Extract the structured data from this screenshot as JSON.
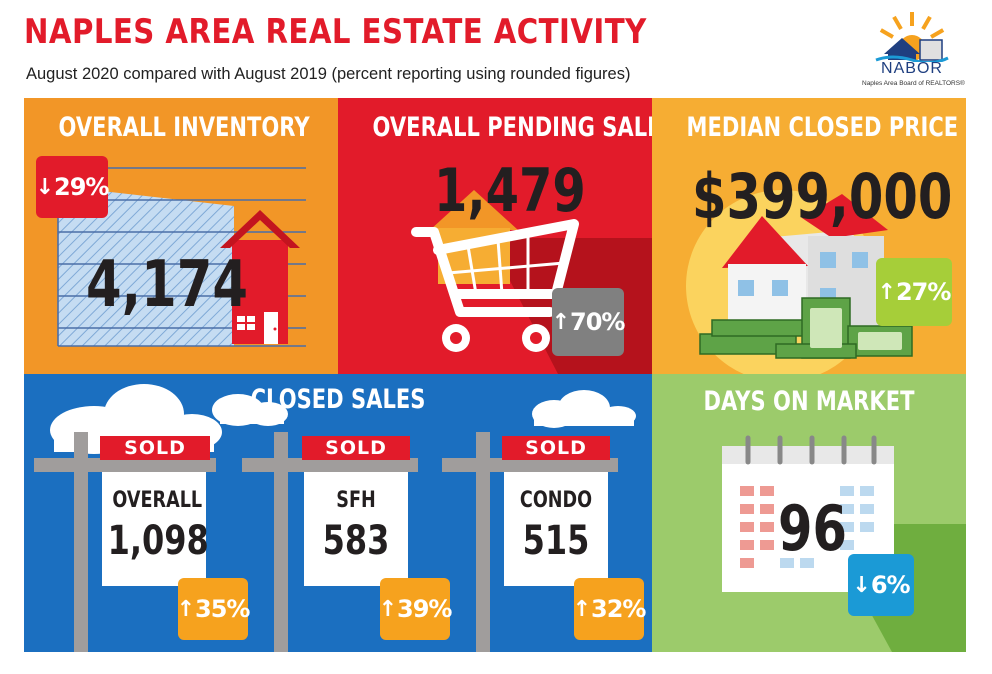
{
  "header": {
    "title": "NAPLES AREA REAL ESTATE ACTIVITY",
    "subtitle": "August 2020 compared with August 2019 (percent reporting using rounded figures)"
  },
  "logo": {
    "name": "NABOR",
    "tagline": "Naples Area Board of REALTORS®"
  },
  "inventory": {
    "title": "OVERALL INVENTORY",
    "value": "4,174",
    "change": "29%",
    "direction": "down",
    "badge_color": "#e21b2a"
  },
  "pending": {
    "title": "OVERALL PENDING SALES",
    "value": "1,479",
    "change": "70%",
    "direction": "up",
    "badge_color": "#808080"
  },
  "median": {
    "title": "MEDIAN CLOSED PRICE",
    "value": "$399,000",
    "change": "27%",
    "direction": "up",
    "badge_color": "#a6ce39"
  },
  "closed_sales": {
    "title": "CLOSED SALES",
    "sold_label": "SOLD",
    "signs": [
      {
        "label": "OVERALL",
        "value": "1,098",
        "change": "35%",
        "direction": "up"
      },
      {
        "label": "SFH",
        "value": "583",
        "change": "39%",
        "direction": "up"
      },
      {
        "label": "CONDO",
        "value": "515",
        "change": "32%",
        "direction": "up"
      }
    ],
    "badge_color": "#f6a21e"
  },
  "days_on_market": {
    "title": "DAYS ON MARKET",
    "value": "96",
    "change": "6%",
    "direction": "down",
    "badge_color": "#1b9ad6"
  },
  "colors": {
    "title_red": "#e21b2a",
    "inventory_bg": "#f29627",
    "pending_bg": "#e21b2a",
    "median_bg": "#f6ad33",
    "closed_bg": "#1b6fc0",
    "dom_bg": "#9ccb6b"
  },
  "icons": {
    "up": "↑",
    "down": "↓"
  }
}
